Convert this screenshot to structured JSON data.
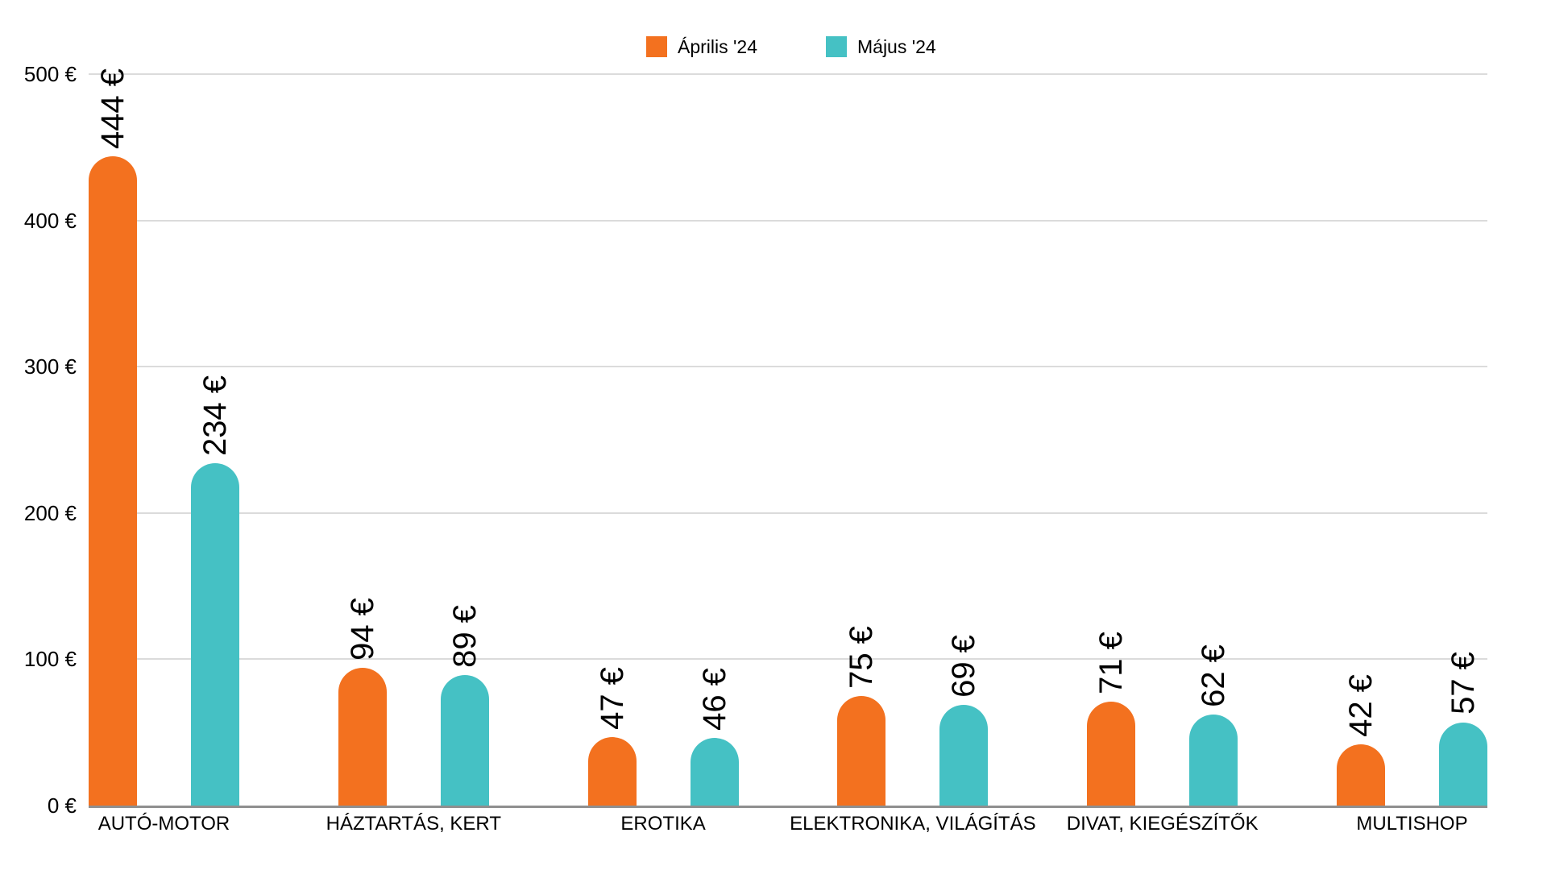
{
  "legend": {
    "items": [
      {
        "label": "Április '24",
        "color": "#F3711F"
      },
      {
        "label": "Május '24",
        "color": "#45C1C4"
      }
    ]
  },
  "chart_data": {
    "type": "bar",
    "categories": [
      "AUTÓ-MOTOR",
      "HÁZTARTÁS, KERT",
      "EROTIKA",
      "ELEKTRONIKA, VILÁGÍTÁS",
      "DIVAT, KIEGÉSZÍTŐK",
      "MULTISHOP"
    ],
    "series": [
      {
        "name": "Április '24",
        "color": "#F3711F",
        "values": [
          444,
          94,
          47,
          75,
          71,
          42
        ]
      },
      {
        "name": "Május '24",
        "color": "#45C1C4",
        "values": [
          234,
          89,
          46,
          69,
          62,
          57
        ]
      }
    ],
    "value_label_suffix": " €",
    "yticks": [
      0,
      100,
      200,
      300,
      400,
      500
    ],
    "ytick_labels": [
      "0 €",
      "100 €",
      "200 €",
      "300 €",
      "400 €",
      "500 €"
    ],
    "ylim": [
      0,
      500
    ],
    "grid": true,
    "legend_position": "top-center",
    "bar_style": "rounded-top"
  },
  "colors": {
    "background": "#FFFFFF",
    "gridline": "#DBDBDB",
    "axis_line": "#8F8F8F",
    "text": "#000000"
  }
}
